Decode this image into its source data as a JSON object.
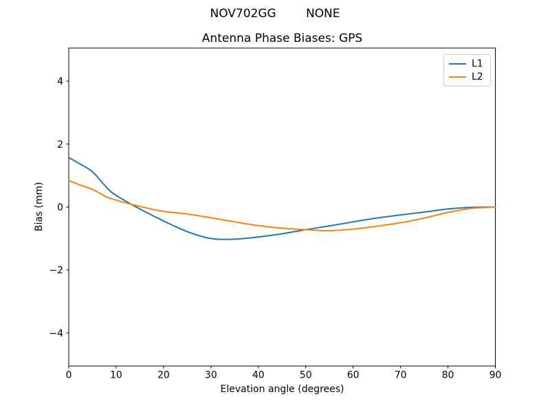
{
  "chart_data": {
    "type": "line",
    "suptitle": "NOV702GG        NONE",
    "title": "Antenna Phase Biases: GPS",
    "xlabel": "Elevation angle (degrees)",
    "ylabel": "Bias (mm)",
    "xlim": [
      0,
      90
    ],
    "ylim": [
      -5.05,
      5.05
    ],
    "xticks": [
      0,
      10,
      20,
      30,
      40,
      50,
      60,
      70,
      80,
      90
    ],
    "yticks": [
      -4,
      -2,
      0,
      2,
      4
    ],
    "grid": false,
    "legend": {
      "position": "upper right",
      "border_color": "#cccccc"
    },
    "frame_color": "#000000",
    "background_color": "#ffffff",
    "x": [
      0,
      2,
      5,
      8,
      10,
      15,
      20,
      25,
      30,
      35,
      40,
      45,
      50,
      55,
      60,
      65,
      70,
      75,
      80,
      85,
      90
    ],
    "series": [
      {
        "name": "L1",
        "color": "#1f77b4",
        "values": [
          1.57,
          1.4,
          1.12,
          0.62,
          0.37,
          -0.06,
          -0.44,
          -0.78,
          -1.0,
          -1.02,
          -0.95,
          -0.85,
          -0.72,
          -0.6,
          -0.47,
          -0.35,
          -0.25,
          -0.16,
          -0.06,
          -0.01,
          0.0
        ]
      },
      {
        "name": "L2",
        "color": "#ff7f0e",
        "values": [
          0.85,
          0.72,
          0.56,
          0.32,
          0.22,
          0.02,
          -0.14,
          -0.22,
          -0.34,
          -0.47,
          -0.59,
          -0.67,
          -0.72,
          -0.75,
          -0.7,
          -0.61,
          -0.5,
          -0.35,
          -0.17,
          -0.04,
          0.0
        ]
      }
    ]
  }
}
